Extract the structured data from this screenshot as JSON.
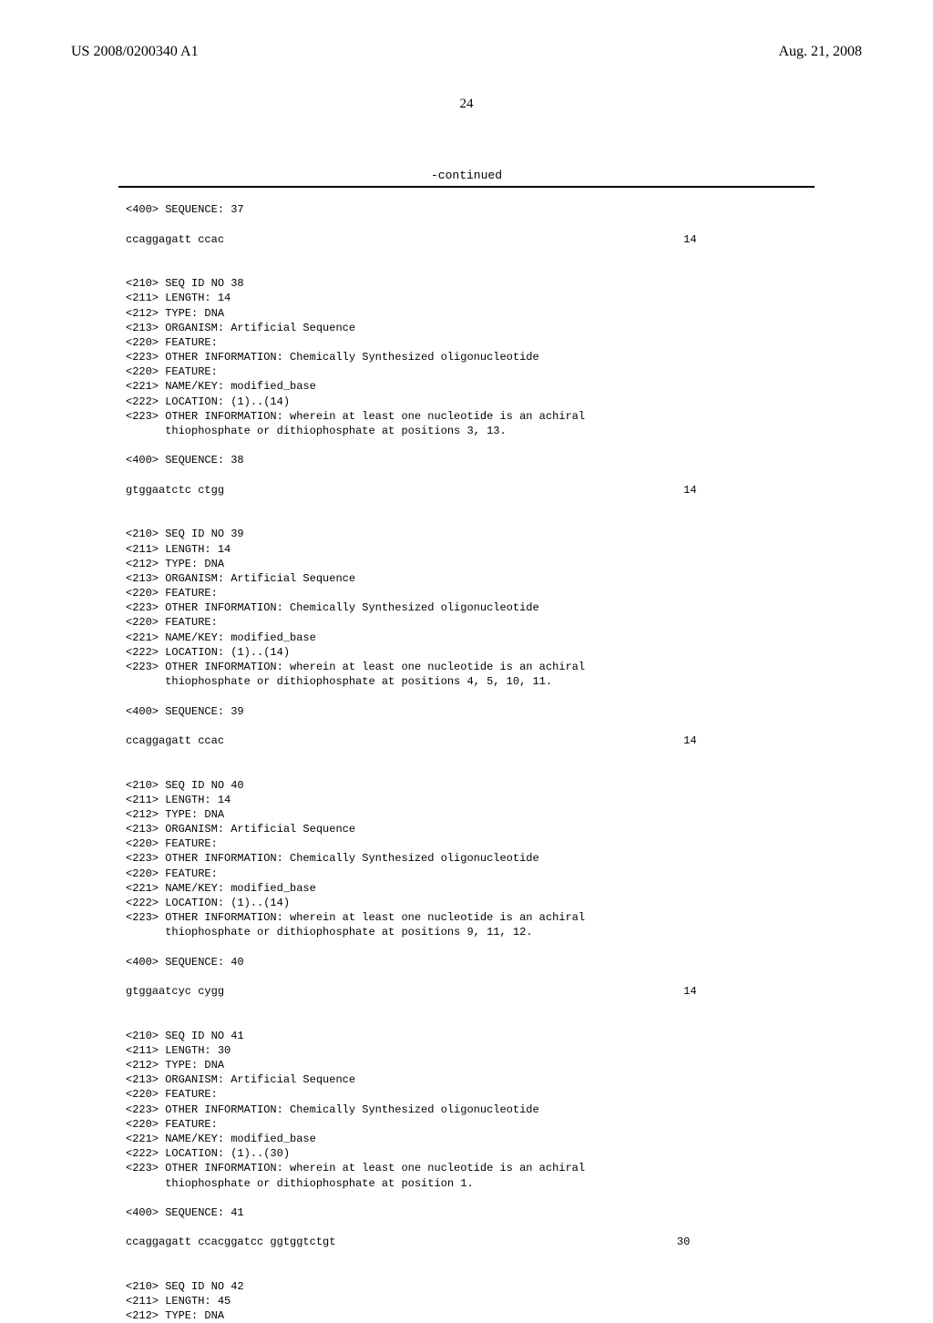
{
  "header": {
    "left": "US 2008/0200340 A1",
    "right": "Aug. 21, 2008"
  },
  "page_number": "24",
  "continued_label": "-continued",
  "sequences": {
    "s37": {
      "seq_line": "<400> SEQUENCE: 37",
      "data": "ccaggagatt ccac",
      "len": "14"
    },
    "s38": {
      "h1": "<210> SEQ ID NO 38",
      "h2": "<211> LENGTH: 14",
      "h3": "<212> TYPE: DNA",
      "h4": "<213> ORGANISM: Artificial Sequence",
      "h5": "<220> FEATURE:",
      "h6": "<223> OTHER INFORMATION: Chemically Synthesized oligonucleotide",
      "h7": "<220> FEATURE:",
      "h8": "<221> NAME/KEY: modified_base",
      "h9": "<222> LOCATION: (1)..(14)",
      "h10": "<223> OTHER INFORMATION: wherein at least one nucleotide is an achiral",
      "h11": "      thiophosphate or dithiophosphate at positions 3, 13.",
      "seq_line": "<400> SEQUENCE: 38",
      "data": "gtggaatctc ctgg",
      "len": "14"
    },
    "s39": {
      "h1": "<210> SEQ ID NO 39",
      "h2": "<211> LENGTH: 14",
      "h3": "<212> TYPE: DNA",
      "h4": "<213> ORGANISM: Artificial Sequence",
      "h5": "<220> FEATURE:",
      "h6": "<223> OTHER INFORMATION: Chemically Synthesized oligonucleotide",
      "h7": "<220> FEATURE:",
      "h8": "<221> NAME/KEY: modified_base",
      "h9": "<222> LOCATION: (1)..(14)",
      "h10": "<223> OTHER INFORMATION: wherein at least one nucleotide is an achiral",
      "h11": "      thiophosphate or dithiophosphate at positions 4, 5, 10, 11.",
      "seq_line": "<400> SEQUENCE: 39",
      "data": "ccaggagatt ccac",
      "len": "14"
    },
    "s40": {
      "h1": "<210> SEQ ID NO 40",
      "h2": "<211> LENGTH: 14",
      "h3": "<212> TYPE: DNA",
      "h4": "<213> ORGANISM: Artificial Sequence",
      "h5": "<220> FEATURE:",
      "h6": "<223> OTHER INFORMATION: Chemically Synthesized oligonucleotide",
      "h7": "<220> FEATURE:",
      "h8": "<221> NAME/KEY: modified_base",
      "h9": "<222> LOCATION: (1)..(14)",
      "h10": "<223> OTHER INFORMATION: wherein at least one nucleotide is an achiral",
      "h11": "      thiophosphate or dithiophosphate at positions 9, 11, 12.",
      "seq_line": "<400> SEQUENCE: 40",
      "data": "gtggaatcyc cygg",
      "len": "14"
    },
    "s41": {
      "h1": "<210> SEQ ID NO 41",
      "h2": "<211> LENGTH: 30",
      "h3": "<212> TYPE: DNA",
      "h4": "<213> ORGANISM: Artificial Sequence",
      "h5": "<220> FEATURE:",
      "h6": "<223> OTHER INFORMATION: Chemically Synthesized oligonucleotide",
      "h7": "<220> FEATURE:",
      "h8": "<221> NAME/KEY: modified_base",
      "h9": "<222> LOCATION: (1)..(30)",
      "h10": "<223> OTHER INFORMATION: wherein at least one nucleotide is an achiral",
      "h11": "      thiophosphate or dithiophosphate at position 1.",
      "seq_line": "<400> SEQUENCE: 41",
      "data": "ccaggagatt ccacggatcc ggtggtctgt",
      "len": "30"
    },
    "s42": {
      "h1": "<210> SEQ ID NO 42",
      "h2": "<211> LENGTH: 45",
      "h3": "<212> TYPE: DNA"
    }
  }
}
